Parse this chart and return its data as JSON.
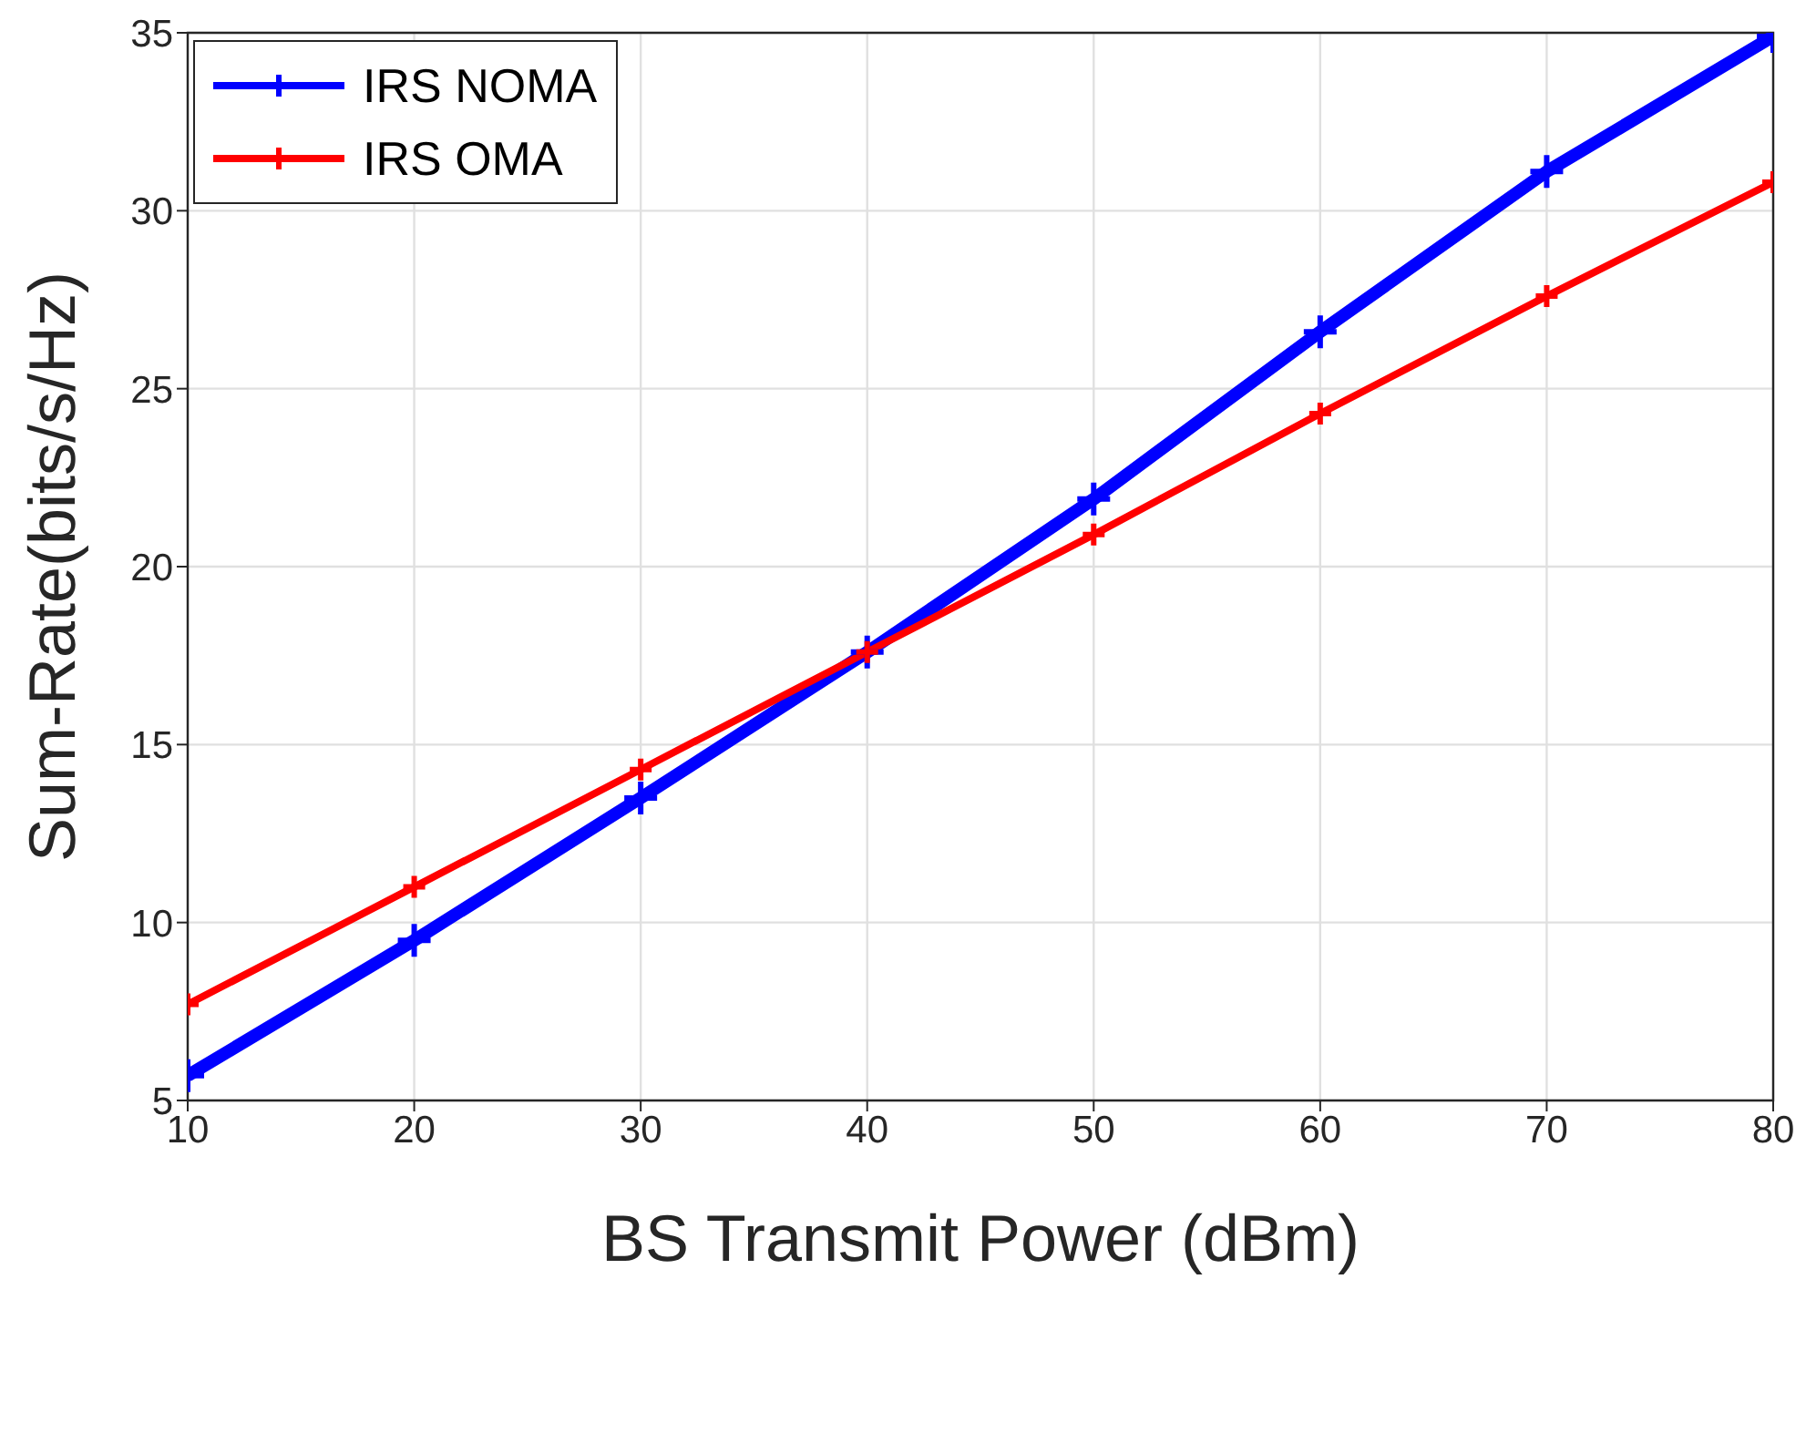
{
  "chart_data": {
    "type": "line",
    "xlabel": "BS Transmit Power (dBm)",
    "ylabel": "Sum-Rate(bits/s/Hz)",
    "x": [
      10,
      20,
      30,
      40,
      50,
      60,
      70,
      80
    ],
    "series": [
      {
        "name": "IRS NOMA",
        "color": "#0000ff",
        "values": [
          5.7,
          9.5,
          13.5,
          17.6,
          21.9,
          26.6,
          31.1,
          34.9
        ]
      },
      {
        "name": "IRS OMA",
        "color": "#ff0000",
        "values": [
          7.7,
          11.0,
          14.3,
          17.6,
          20.9,
          24.3,
          27.6,
          30.8
        ]
      }
    ],
    "xlim": [
      10,
      80
    ],
    "xticks": [
      10,
      20,
      30,
      40,
      50,
      60,
      70,
      80
    ],
    "ylim": [
      5,
      35
    ],
    "yticks": [
      5,
      10,
      15,
      20,
      25,
      30,
      35
    ],
    "grid": true,
    "legend": "top left",
    "marker": "cross",
    "line_style": "solid"
  }
}
